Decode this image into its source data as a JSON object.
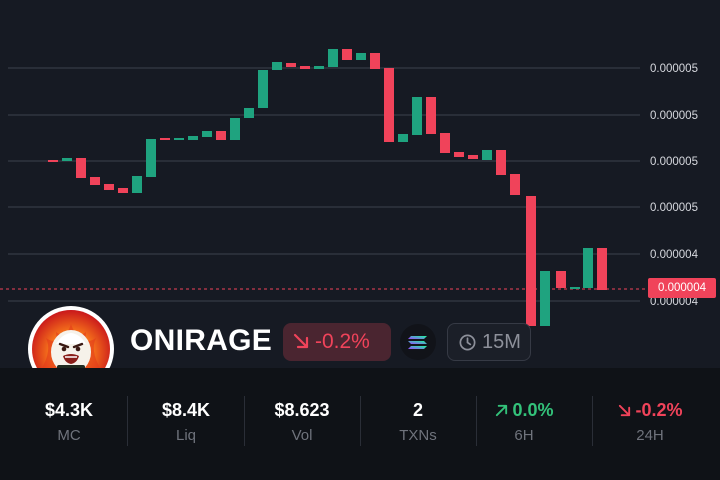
{
  "chart": {
    "price_axis_labels": [
      "0.000005",
      "0.000005",
      "0.000005",
      "0.000005",
      "0.000004",
      "0.000004"
    ],
    "current_price_label": "0.000004",
    "colors": {
      "up": "#1fa37f",
      "down": "#f0435a",
      "grid": "#3c414c",
      "background": "#161a23"
    }
  },
  "token": {
    "name": "ONIRAGE",
    "change": "-0.2%",
    "interval": "15M",
    "avatar_icon": "onirage-avatar-icon",
    "chain_icon": "solana-icon"
  },
  "stats": [
    {
      "value": "$4.3K",
      "label": "MC"
    },
    {
      "value": "$8.4K",
      "label": "Liq"
    },
    {
      "value": "$8.623",
      "label": "Vol"
    },
    {
      "value": "2",
      "label": "TXNs"
    },
    {
      "value": "0.0%",
      "label": "6H",
      "trend": "up"
    },
    {
      "value": "-0.2%",
      "label": "24H",
      "trend": "down"
    }
  ]
}
